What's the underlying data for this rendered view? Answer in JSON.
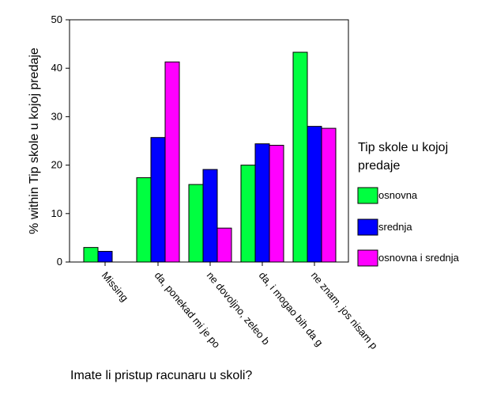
{
  "chart_data": {
    "type": "bar",
    "title": "",
    "xlabel": "Imate li pristup racunaru u skoli?",
    "ylabel": "% within Tip skole u kojoj predaje",
    "ylim": [
      0,
      50
    ],
    "yticks": [
      0,
      10,
      20,
      30,
      40,
      50
    ],
    "grid": false,
    "legend_position": "right",
    "legend_title": "Tip skole u kojoj predaje",
    "categories": [
      "Missing",
      "da, ponekad mi je po",
      "ne dovoljno, zeleo b",
      "da, i mogao bih da g",
      "ne znam, jos nisam p"
    ],
    "series": [
      {
        "name": "osnovna",
        "color": "#00ff40",
        "values": [
          3.0,
          17.4,
          16.0,
          20.0,
          43.3
        ]
      },
      {
        "name": "srednja",
        "color": "#0000ff",
        "values": [
          2.2,
          25.7,
          19.1,
          24.4,
          28.0
        ]
      },
      {
        "name": "osnovna i srednja",
        "color": "#ff00ff",
        "values": [
          0,
          41.3,
          7.0,
          24.1,
          27.6
        ]
      }
    ]
  }
}
